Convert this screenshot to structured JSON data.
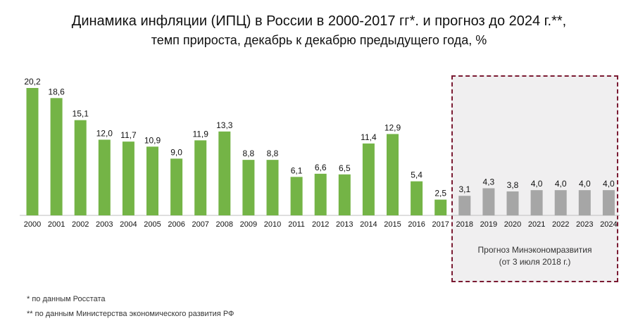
{
  "title": "Динамика инфляции (ИПЦ) в России в 2000-2017 гг*. и прогноз до 2024 г.**,",
  "subtitle": "темп прироста, декабрь к декабрю предыдущего года, %",
  "forecast_label_line1": "Прогноз Минэкономразвития",
  "forecast_label_line2": "(от 3 июля 2018 г.)",
  "footnote1": "* по данным Росстата",
  "footnote2": "** по данным Министерства экономического развития РФ",
  "colors": {
    "actual": "#74b446",
    "forecast": "#a6a6a6",
    "frame": "#7a1a32"
  },
  "chart_data": {
    "type": "bar",
    "categories": [
      "2000",
      "2001",
      "2002",
      "2003",
      "2004",
      "2005",
      "2006",
      "2007",
      "2008",
      "2009",
      "2010",
      "2011",
      "2012",
      "2013",
      "2014",
      "2015",
      "2016",
      "2017",
      "2018",
      "2019",
      "2020",
      "2021",
      "2022",
      "2023",
      "2024"
    ],
    "values": [
      20.2,
      18.6,
      15.1,
      12.0,
      11.7,
      10.9,
      9.0,
      11.9,
      13.3,
      8.8,
      8.8,
      6.1,
      6.6,
      6.5,
      11.4,
      12.9,
      5.4,
      2.5,
      3.1,
      4.3,
      3.8,
      4.0,
      4.0,
      4.0,
      4.0
    ],
    "value_labels": [
      "20,2",
      "18,6",
      "15,1",
      "12,0",
      "11,7",
      "10,9",
      "9,0",
      "11,9",
      "13,3",
      "8,8",
      "8,8",
      "6,1",
      "6,6",
      "6,5",
      "11,4",
      "12,9",
      "5,4",
      "2,5",
      "3,1",
      "4,3",
      "3,8",
      "4,0",
      "4,0",
      "4,0",
      "4,0"
    ],
    "forecast_start": "2018",
    "ylim": [
      0,
      20.2
    ],
    "grid": false,
    "legend": "none"
  }
}
